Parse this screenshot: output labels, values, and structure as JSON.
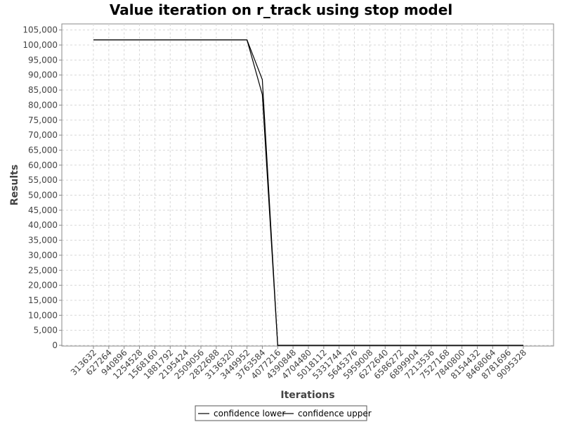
{
  "chart_data": {
    "type": "line",
    "title": "Value iteration on r_track using stop model",
    "xlabel": "Iterations",
    "ylabel": "Results",
    "categories": [
      "313632",
      "627264",
      "940896",
      "1254528",
      "1568160",
      "1881792",
      "2195424",
      "2509056",
      "2822688",
      "3136320",
      "3449952",
      "3763584",
      "4077216",
      "4390848",
      "4704480",
      "5018112",
      "5331744",
      "5645376",
      "5959008",
      "6272640",
      "6586272",
      "6899904",
      "7213536",
      "7527168",
      "7840800",
      "8154432",
      "8468064",
      "8781696",
      "9095328"
    ],
    "ylim": [
      0,
      107000
    ],
    "yticks": [
      0,
      5000,
      10000,
      15000,
      20000,
      25000,
      30000,
      35000,
      40000,
      45000,
      50000,
      55000,
      60000,
      65000,
      70000,
      75000,
      80000,
      85000,
      90000,
      95000,
      100000,
      105000
    ],
    "ytick_labels": [
      "0",
      "5,000",
      "10,000",
      "15,000",
      "20,000",
      "25,000",
      "30,000",
      "35,000",
      "40,000",
      "45,000",
      "50,000",
      "55,000",
      "60,000",
      "65,000",
      "70,000",
      "75,000",
      "80,000",
      "85,000",
      "90,000",
      "95,000",
      "100,000",
      "105,000"
    ],
    "grid": true,
    "legend_position": "bottom",
    "series": [
      {
        "name": "confidence lower",
        "color": "#000000",
        "values": [
          101700,
          101700,
          101700,
          101700,
          101700,
          101700,
          101700,
          101700,
          101700,
          101700,
          101700,
          83500,
          0,
          0,
          0,
          0,
          0,
          0,
          0,
          0,
          0,
          0,
          0,
          0,
          0,
          0,
          0,
          0,
          0
        ]
      },
      {
        "name": "confidence upper",
        "color": "#000000",
        "values": [
          101700,
          101700,
          101700,
          101700,
          101700,
          101700,
          101700,
          101700,
          101700,
          101700,
          101700,
          88500,
          0,
          0,
          0,
          0,
          0,
          0,
          0,
          0,
          0,
          0,
          0,
          0,
          0,
          0,
          0,
          0,
          0
        ]
      }
    ]
  }
}
